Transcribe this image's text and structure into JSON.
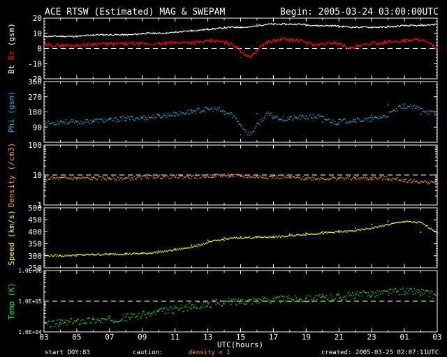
{
  "header": {
    "title": "ACE RTSW (Estimated) MAG & SWEPAM",
    "begin": "Begin: 2005-03-24 03:00:00UTC"
  },
  "footer": {
    "start_doy_label": "start DOY:",
    "start_doy_value": "83",
    "caution_label": "caution:",
    "caution_text": "density < 1",
    "created": "created: 2005-03-25 02:07:11UTC"
  },
  "colors": {
    "background": "#000000",
    "axes": "#ffffff",
    "bt": "#ffffff",
    "bz": "#ff0000",
    "phi": "#33aadd",
    "density": "#ff9933",
    "speed": "#ffff33",
    "temp": "#33dd33",
    "caution": "#ff9933"
  },
  "chart_data": [
    {
      "type": "line",
      "ylabel_parts": [
        "Bt",
        "Bz",
        "(gsm)"
      ],
      "ylim": [
        -20,
        20
      ],
      "yticks": [
        -20,
        -10,
        0,
        10,
        20
      ],
      "reference_line": 0,
      "x": [
        0,
        1,
        2,
        3,
        4,
        5,
        6,
        7,
        8,
        9,
        10,
        11,
        12,
        13,
        14,
        15,
        16,
        17,
        18,
        19,
        20,
        21,
        22,
        23
      ],
      "series": [
        {
          "name": "Bt",
          "values": [
            8,
            8,
            8,
            9,
            9,
            9,
            10,
            10,
            11,
            12,
            13,
            14,
            14,
            16,
            16,
            16,
            15,
            15,
            14,
            14,
            14,
            15,
            15,
            16
          ]
        },
        {
          "name": "Bz",
          "values": [
            2,
            2,
            2,
            3,
            3,
            3,
            3,
            3,
            4,
            4,
            5,
            3,
            -6,
            4,
            6,
            5,
            2,
            4,
            0,
            3,
            4,
            5,
            6,
            0
          ]
        }
      ]
    },
    {
      "type": "scatter",
      "ylabel": "Phi (gsm)",
      "ylim": [
        0,
        360
      ],
      "yticks": [
        90,
        180,
        270,
        360
      ],
      "x": [
        0,
        1,
        2,
        3,
        4,
        5,
        6,
        7,
        8,
        9,
        10,
        11,
        12,
        13,
        14,
        15,
        16,
        17,
        18,
        19,
        20,
        21,
        22,
        23
      ],
      "values": [
        110,
        125,
        120,
        130,
        135,
        145,
        150,
        160,
        175,
        190,
        200,
        165,
        45,
        170,
        140,
        150,
        155,
        120,
        135,
        135,
        160,
        220,
        200,
        165
      ]
    },
    {
      "type": "scatter",
      "ylabel": "Density (/cm3)",
      "scale": "log",
      "ylim": [
        1,
        100
      ],
      "yticks": [
        1,
        10,
        100
      ],
      "reference_line": 10,
      "x": [
        0,
        1,
        2,
        3,
        4,
        5,
        6,
        7,
        8,
        9,
        10,
        11,
        12,
        13,
        14,
        15,
        16,
        17,
        18,
        19,
        20,
        21,
        22,
        23
      ],
      "values": [
        8,
        8,
        8,
        8,
        8,
        8,
        9,
        9,
        9,
        9,
        10,
        10,
        9,
        9,
        9,
        8,
        8,
        8,
        8,
        8,
        8,
        7,
        6,
        6
      ]
    },
    {
      "type": "scatter",
      "ylabel": "Speed (km/s)",
      "ylim": [
        250,
        500
      ],
      "yticks": [
        250,
        300,
        350,
        400,
        450,
        500
      ],
      "x": [
        0,
        1,
        2,
        3,
        4,
        5,
        6,
        7,
        8,
        9,
        10,
        11,
        12,
        13,
        14,
        15,
        16,
        17,
        18,
        19,
        20,
        21,
        22,
        23
      ],
      "values": [
        303,
        302,
        305,
        307,
        308,
        310,
        312,
        320,
        330,
        345,
        365,
        375,
        378,
        380,
        382,
        390,
        395,
        400,
        405,
        415,
        430,
        445,
        440,
        398
      ]
    },
    {
      "type": "scatter",
      "ylabel": "Temp (K)",
      "scale": "log",
      "ylim": [
        10000,
        1000000
      ],
      "ytick_labels": [
        "1.0E+04",
        "1.0E+05",
        "1.0E+06"
      ],
      "reference_line": 100000,
      "x": [
        0,
        1,
        2,
        3,
        4,
        5,
        6,
        7,
        8,
        9,
        10,
        11,
        12,
        13,
        14,
        15,
        16,
        17,
        18,
        19,
        20,
        21,
        22,
        23
      ],
      "values": [
        18000,
        20000,
        23000,
        25000,
        27000,
        32000,
        38000,
        50000,
        60000,
        75000,
        90000,
        100000,
        110000,
        115000,
        120000,
        125000,
        130000,
        140000,
        160000,
        180000,
        200000,
        220000,
        210000,
        150000
      ]
    }
  ],
  "xaxis": {
    "label": "UTC(hours)",
    "tick_labels": [
      "03",
      "05",
      "07",
      "09",
      "11",
      "13",
      "15",
      "17",
      "19",
      "21",
      "23",
      "01",
      "03"
    ]
  }
}
